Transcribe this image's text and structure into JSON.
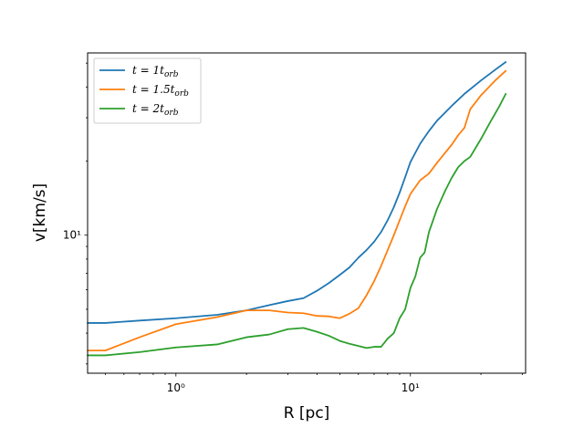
{
  "chart_data": {
    "type": "line",
    "xlabel": "R [pc]",
    "ylabel": "v[km/s]",
    "xscale": "log",
    "yscale": "log",
    "xlim": [
      0.42,
      31
    ],
    "ylim": [
      2.75,
      55
    ],
    "x_ticks": [
      {
        "value": 1,
        "label": "10⁰"
      },
      {
        "value": 10,
        "label": "10¹"
      }
    ],
    "y_ticks": [
      {
        "value": 10,
        "label": "10¹"
      }
    ],
    "grid": false,
    "legend_position": "upper left",
    "series": [
      {
        "name": "t = 1t_orb",
        "name_parts": {
          "prefix": "t = 1t",
          "sub": "orb"
        },
        "color": "#1f77b4",
        "x": [
          0.42,
          0.5,
          0.7,
          1.0,
          1.5,
          2.0,
          2.5,
          3.0,
          3.5,
          4.0,
          4.5,
          5.0,
          5.5,
          6.0,
          6.5,
          7.0,
          7.5,
          8.0,
          8.5,
          9.0,
          9.5,
          10.0,
          11.0,
          12.0,
          13.0,
          15.0,
          17.0,
          20.0,
          23.0,
          25.5
        ],
        "y": [
          4.4,
          4.4,
          4.5,
          4.6,
          4.75,
          4.95,
          5.2,
          5.4,
          5.55,
          5.95,
          6.4,
          6.9,
          7.4,
          8.1,
          8.7,
          9.4,
          10.3,
          11.5,
          13.0,
          14.9,
          17.2,
          19.8,
          23.5,
          26.5,
          29.2,
          33.5,
          37.5,
          42.5,
          47.0,
          50.5
        ]
      },
      {
        "name": "t = 1.5t_orb",
        "name_parts": {
          "prefix": "t = 1.5t",
          "sub": "orb"
        },
        "color": "#ff7f0e",
        "x": [
          0.42,
          0.5,
          0.7,
          1.0,
          1.5,
          2.0,
          2.5,
          3.0,
          3.5,
          4.0,
          4.5,
          5.0,
          5.5,
          6.0,
          6.5,
          7.0,
          7.5,
          8.0,
          8.5,
          9.0,
          9.5,
          10.0,
          11.0,
          12.0,
          13.0,
          14.0,
          15.0,
          16.0,
          17.0,
          18.0,
          20.0,
          23.0,
          25.5
        ],
        "y": [
          3.4,
          3.4,
          3.85,
          4.35,
          4.65,
          4.95,
          4.95,
          4.85,
          4.82,
          4.7,
          4.68,
          4.6,
          4.8,
          5.05,
          5.7,
          6.5,
          7.5,
          8.7,
          10.0,
          11.5,
          13.1,
          14.7,
          16.7,
          17.8,
          19.7,
          21.5,
          23.3,
          25.5,
          27.3,
          32.5,
          37.0,
          42.5,
          46.5
        ]
      },
      {
        "name": "t = 2t_orb",
        "name_parts": {
          "prefix": "t = 2t",
          "sub": "orb"
        },
        "color": "#2ca02c",
        "x": [
          0.42,
          0.5,
          0.7,
          1.0,
          1.5,
          2.0,
          2.5,
          3.0,
          3.5,
          4.0,
          4.5,
          5.0,
          5.5,
          6.0,
          6.5,
          7.0,
          7.5,
          8.0,
          8.5,
          9.0,
          9.5,
          10.0,
          10.5,
          11.0,
          11.5,
          12.0,
          13.0,
          14.0,
          15.0,
          16.0,
          17.0,
          18.0,
          20.0,
          22.0,
          24.0,
          25.5
        ],
        "y": [
          3.25,
          3.25,
          3.35,
          3.5,
          3.6,
          3.85,
          3.95,
          4.15,
          4.2,
          4.05,
          3.9,
          3.72,
          3.62,
          3.55,
          3.48,
          3.52,
          3.52,
          3.8,
          4.0,
          4.6,
          5.0,
          6.1,
          6.8,
          8.1,
          8.5,
          10.3,
          12.8,
          15.0,
          17.1,
          18.9,
          20.0,
          20.8,
          24.6,
          29.0,
          33.5,
          37.5
        ]
      }
    ]
  }
}
